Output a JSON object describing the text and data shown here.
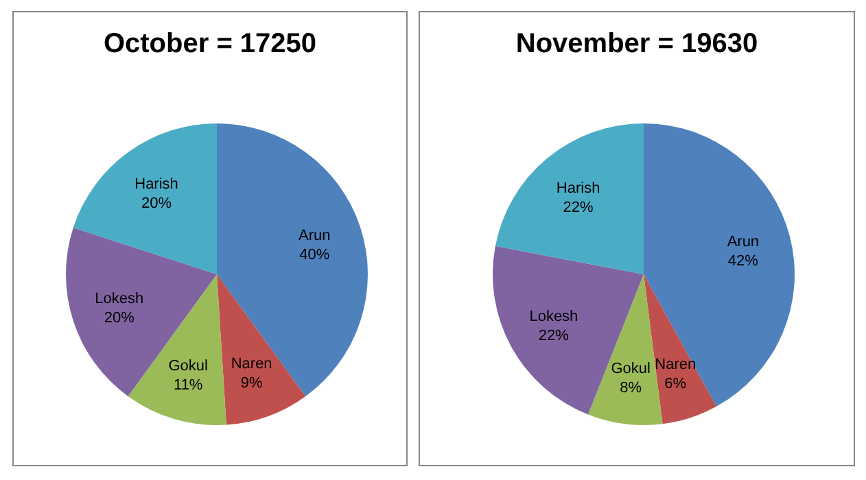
{
  "chart_data": [
    {
      "type": "pie",
      "title": "October = 17250",
      "categories": [
        "Arun",
        "Naren",
        "Gokul",
        "Lokesh",
        "Harish"
      ],
      "values": [
        40,
        9,
        11,
        20,
        20
      ],
      "colors": [
        "#4f81bd",
        "#c0504d",
        "#9bbb59",
        "#8064a2",
        "#4bacc6"
      ],
      "value_labels": [
        "40%",
        "9%",
        "11%",
        "20%",
        "20%"
      ]
    },
    {
      "type": "pie",
      "title": "November = 19630",
      "categories": [
        "Arun",
        "Naren",
        "Gokul",
        "Lokesh",
        "Harish"
      ],
      "values": [
        42,
        6,
        8,
        22,
        22
      ],
      "colors": [
        "#4f81bd",
        "#c0504d",
        "#9bbb59",
        "#8064a2",
        "#4bacc6"
      ],
      "value_labels": [
        "42%",
        "6%",
        "8%",
        "22%",
        "22%"
      ]
    }
  ]
}
